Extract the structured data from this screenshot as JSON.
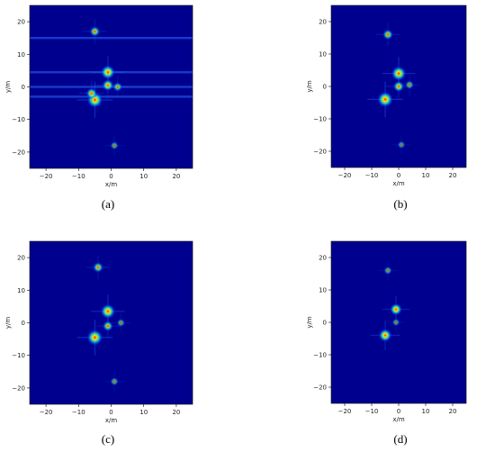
{
  "figure": {
    "captions": [
      "(a)",
      "(b)",
      "(c)",
      "(d)"
    ]
  },
  "chart_data": [
    {
      "type": "heatmap",
      "panel": "a",
      "title": "",
      "xlabel": "x/m",
      "ylabel": "y/m",
      "xlim": [
        -25,
        25
      ],
      "ylim": [
        -25,
        25
      ],
      "xticks": [
        "−20",
        "−10",
        "0",
        "10",
        "20"
      ],
      "yticks": [
        "20",
        "10",
        "0",
        "−10",
        "−20"
      ],
      "colormap": "jet",
      "background": "#00008f",
      "hot_spots": [
        {
          "x": -5,
          "y": -4,
          "i": 1.0
        },
        {
          "x": -1,
          "y": 4.5,
          "i": 0.85
        },
        {
          "x": -1,
          "y": 0.5,
          "i": 0.6
        },
        {
          "x": -5,
          "y": 17,
          "i": 0.5
        },
        {
          "x": 1,
          "y": -18,
          "i": 0.3
        },
        {
          "x": 2,
          "y": 0,
          "i": 0.4
        },
        {
          "x": -6,
          "y": -2,
          "i": 0.55
        }
      ],
      "streaks_y": [
        15,
        4.5,
        0,
        -3
      ]
    },
    {
      "type": "heatmap",
      "panel": "b",
      "title": "",
      "xlabel": "x/m",
      "ylabel": "y/m",
      "xlim": [
        -25,
        25
      ],
      "ylim": [
        -25,
        25
      ],
      "xticks": [
        "−20",
        "−10",
        "0",
        "10",
        "20"
      ],
      "yticks": [
        "20",
        "10",
        "0",
        "−10",
        "−20"
      ],
      "colormap": "jet",
      "background": "#00008f",
      "hot_spots": [
        {
          "x": -5,
          "y": -4,
          "i": 1.0
        },
        {
          "x": 0,
          "y": 4,
          "i": 0.9
        },
        {
          "x": 0,
          "y": 0,
          "i": 0.55
        },
        {
          "x": -4,
          "y": 16,
          "i": 0.5
        },
        {
          "x": 4,
          "y": 0.5,
          "i": 0.35
        },
        {
          "x": 1,
          "y": -18,
          "i": 0.25
        }
      ],
      "streaks_y": []
    },
    {
      "type": "heatmap",
      "panel": "c",
      "title": "",
      "xlabel": "x/m",
      "ylabel": "y/m",
      "xlim": [
        -25,
        25
      ],
      "ylim": [
        -25,
        25
      ],
      "xticks": [
        "−20",
        "−10",
        "0",
        "10",
        "20"
      ],
      "yticks": [
        "20",
        "10",
        "0",
        "−10",
        "−20"
      ],
      "colormap": "jet",
      "background": "#00008f",
      "hot_spots": [
        {
          "x": -5,
          "y": -4.5,
          "i": 1.0
        },
        {
          "x": -1,
          "y": 3.5,
          "i": 0.9
        },
        {
          "x": -4,
          "y": 17,
          "i": 0.5
        },
        {
          "x": -1,
          "y": -1,
          "i": 0.5
        },
        {
          "x": 1,
          "y": -18,
          "i": 0.3
        },
        {
          "x": 3,
          "y": 0,
          "i": 0.3
        }
      ],
      "streaks_y": []
    },
    {
      "type": "heatmap",
      "panel": "d",
      "title": "",
      "xlabel": "x/m",
      "ylabel": "y/m",
      "xlim": [
        -25,
        25
      ],
      "ylim": [
        -25,
        25
      ],
      "xticks": [
        "−20",
        "−10",
        "0",
        "10",
        "20"
      ],
      "yticks": [
        "20",
        "10",
        "0",
        "−10",
        "−20"
      ],
      "colormap": "jet",
      "background": "#00008f",
      "hot_spots": [
        {
          "x": -5,
          "y": -4,
          "i": 0.75
        },
        {
          "x": -1,
          "y": 4,
          "i": 0.65
        },
        {
          "x": -4,
          "y": 16,
          "i": 0.3
        },
        {
          "x": -1,
          "y": 0,
          "i": 0.25
        }
      ],
      "streaks_y": []
    }
  ]
}
